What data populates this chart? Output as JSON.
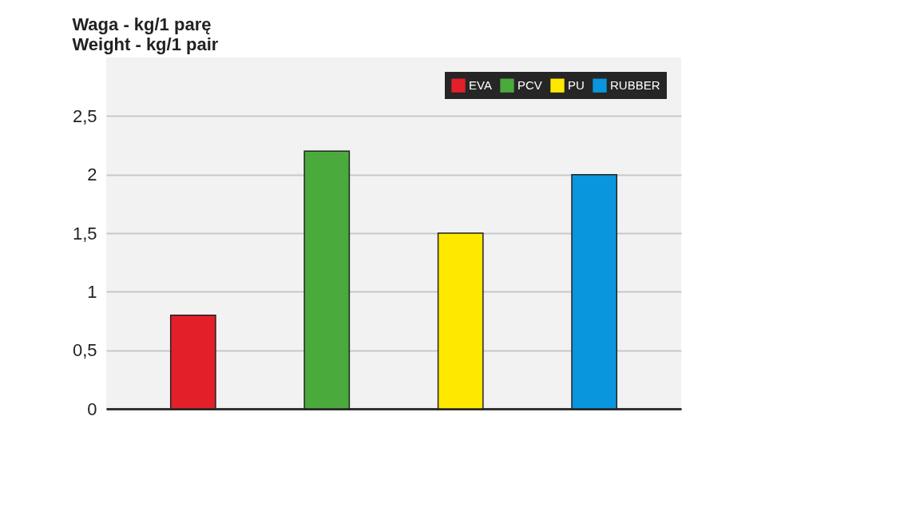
{
  "chart_data": {
    "type": "bar",
    "title": "Waga - kg/1 parę",
    "subtitle": "Weight - kg/1 pair",
    "categories": [
      null,
      null,
      null,
      null
    ],
    "series": [
      {
        "name": "EVA",
        "color": "#e3202a",
        "values": [
          0.8,
          null,
          null,
          null
        ]
      },
      {
        "name": "PCV",
        "color": "#4aaa3c",
        "values": [
          null,
          2.2,
          null,
          null
        ]
      },
      {
        "name": "PU",
        "color": "#ffe800",
        "values": [
          null,
          null,
          1.5,
          null
        ]
      },
      {
        "name": "RUBBER",
        "color": "#0a96dc",
        "values": [
          null,
          null,
          null,
          2.0
        ]
      }
    ],
    "ylim": [
      0,
      3
    ],
    "yticks": [
      0,
      {
        "value": 0.5,
        "label": "0,5"
      },
      1,
      {
        "value": 1.5,
        "label": "1,5"
      },
      2,
      {
        "value": 2.5,
        "label": "2,5"
      }
    ],
    "grid": "y",
    "legend": "top right",
    "tick_labels": "y"
  }
}
